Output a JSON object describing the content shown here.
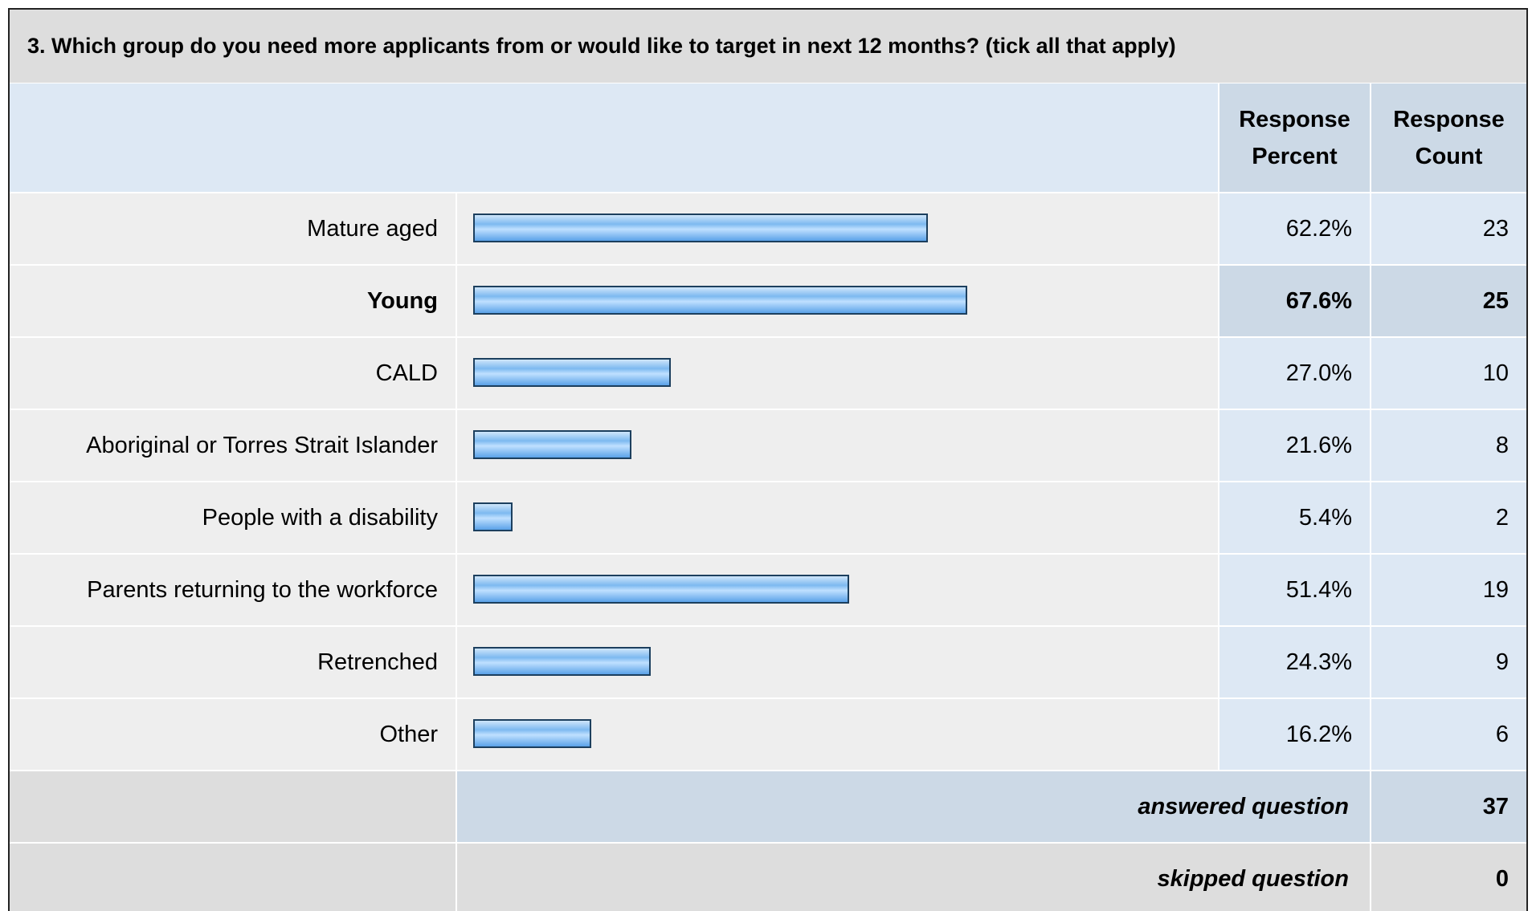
{
  "title": "3. Which group do you need more applicants from or would like to target in next 12 months? (tick all that apply)",
  "columns": [
    "Response Percent",
    "Response Count"
  ],
  "rows": [
    {
      "label": "Mature aged",
      "percent": 62.2,
      "percent_label": "62.2%",
      "count": 23
    },
    {
      "label": "Young",
      "percent": 67.6,
      "percent_label": "67.6%",
      "count": 25,
      "highlight": true
    },
    {
      "label": "CALD",
      "percent": 27.0,
      "percent_label": "27.0%",
      "count": 10
    },
    {
      "label": "Aboriginal or Torres Strait Islander",
      "percent": 21.6,
      "percent_label": "21.6%",
      "count": 8
    },
    {
      "label": "People with a disability",
      "percent": 5.4,
      "percent_label": "5.4%",
      "count": 2
    },
    {
      "label": "Parents returning to the workforce",
      "percent": 51.4,
      "percent_label": "51.4%",
      "count": 19
    },
    {
      "label": "Retrenched",
      "percent": 24.3,
      "percent_label": "24.3%",
      "count": 9
    },
    {
      "label": "Other",
      "percent": 16.2,
      "percent_label": "16.2%",
      "count": 6
    }
  ],
  "summary": [
    {
      "label": "answered question",
      "count": 37,
      "highlight": true
    },
    {
      "label": "skipped question",
      "count": 0
    }
  ]
}
